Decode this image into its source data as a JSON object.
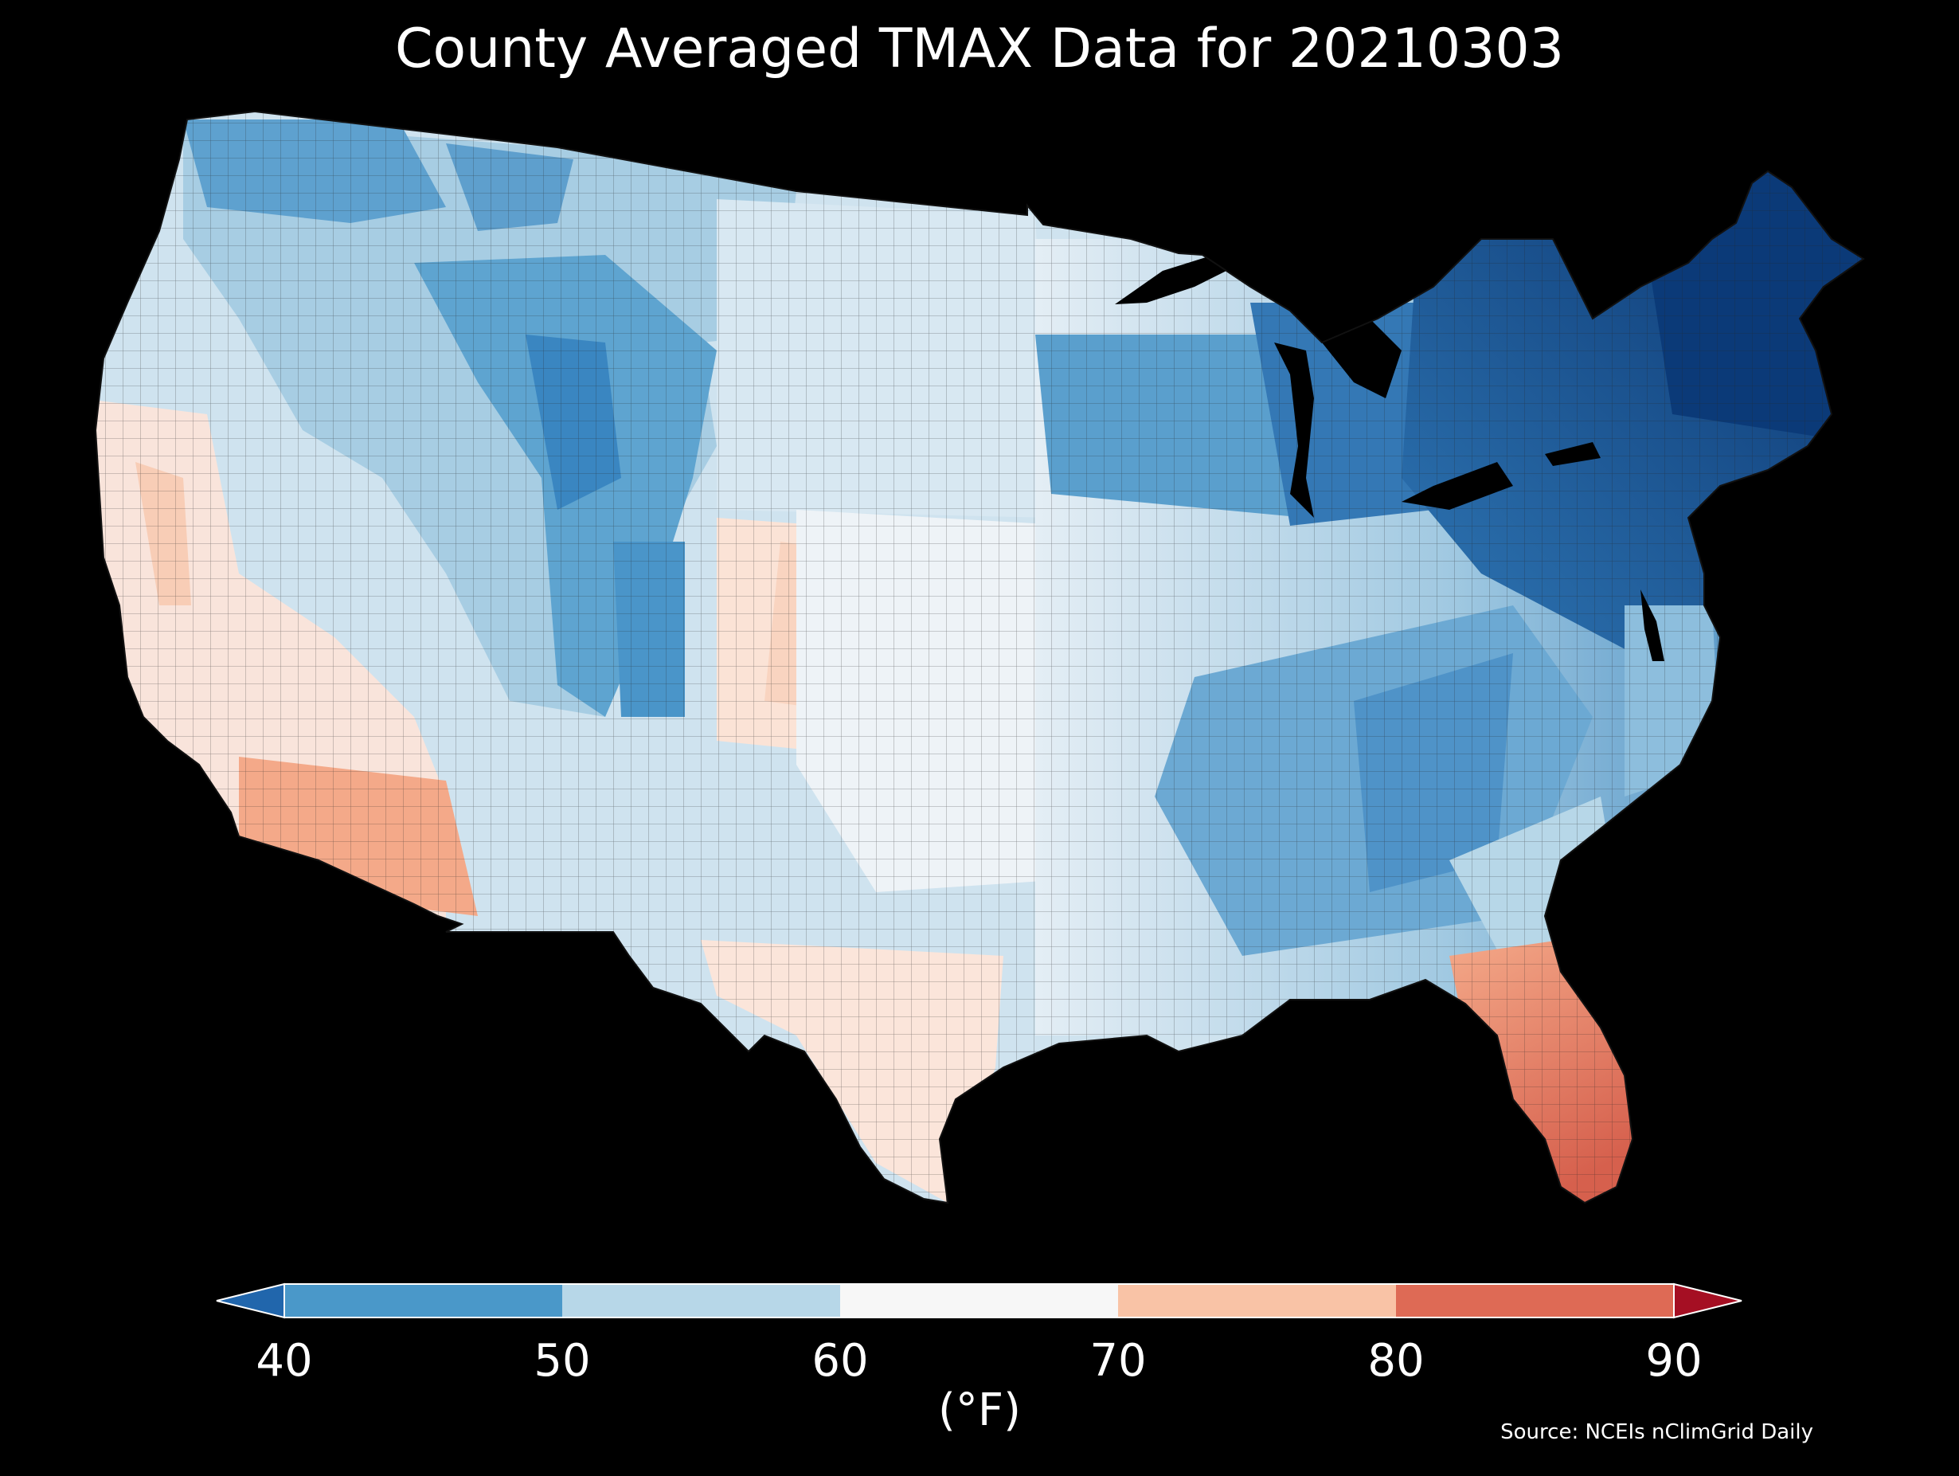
{
  "title": "County Averaged TMAX Data for 20210303",
  "colorbar": {
    "unit_label": "(°F)",
    "ticks": [
      "40",
      "50",
      "60",
      "70",
      "80",
      "90"
    ],
    "bins": [
      {
        "from": 40,
        "to": 50,
        "color": "#4a98c9"
      },
      {
        "from": 50,
        "to": 60,
        "color": "#b7d7e8"
      },
      {
        "from": 60,
        "to": 70,
        "color": "#f7f7f7"
      },
      {
        "from": 70,
        "to": 80,
        "color": "#f9c3a6"
      },
      {
        "from": 80,
        "to": 90,
        "color": "#de6a55"
      }
    ],
    "under_color": "#2166ac",
    "over_color": "#a50f23",
    "extend": "both"
  },
  "source": "Source: NCEIs nClimGrid Daily",
  "palette": {
    "background": "#000000",
    "county_border": "#1a1a1a"
  }
}
